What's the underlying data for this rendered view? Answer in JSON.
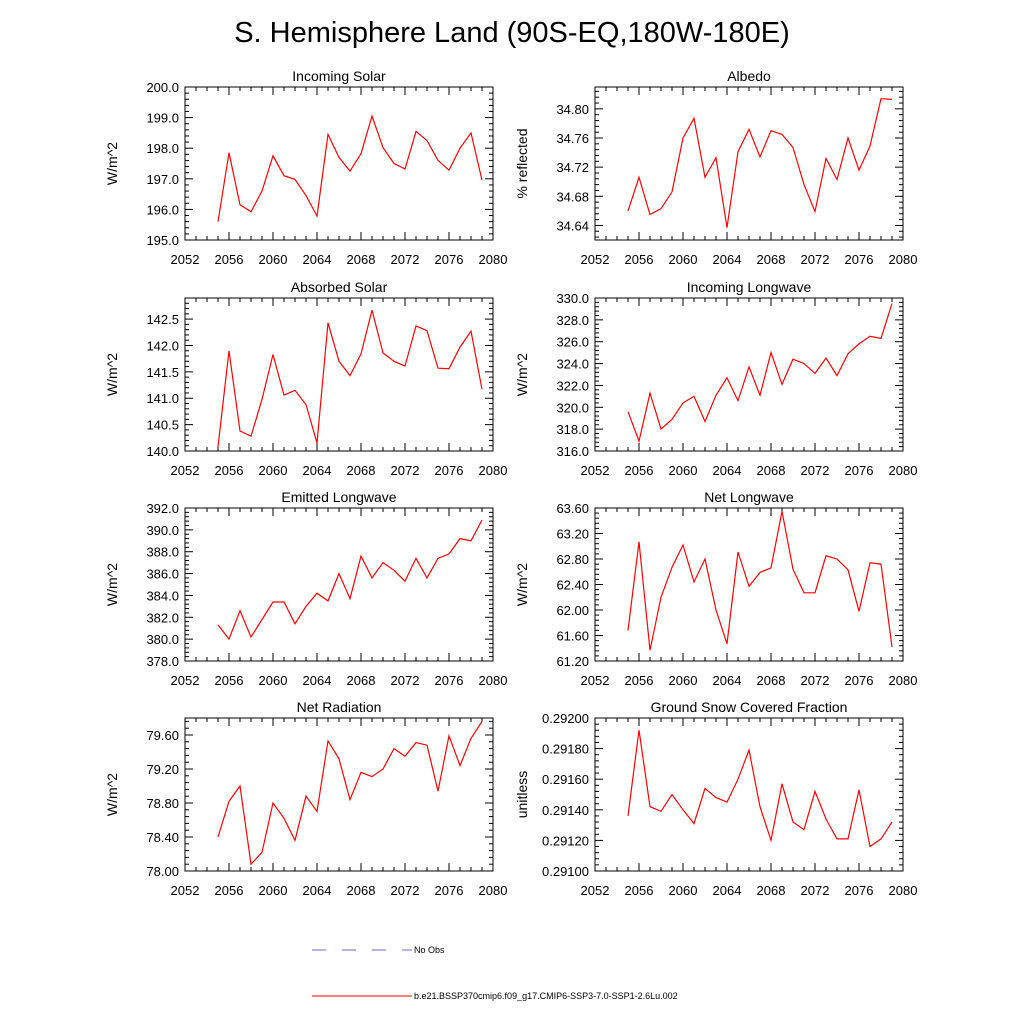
{
  "title": "S. Hemisphere Land (90S-EQ,180W-180E)",
  "legend": {
    "items": [
      {
        "label": "No Obs",
        "style": "dashed",
        "color": "#6b6bc8"
      },
      {
        "label": "b.e21.BSSP370cmip6.f09_g17.CMIP6-SSP3-7.0-SSP1-2.6Lu.002",
        "style": "solid",
        "color": "#ff0000"
      }
    ]
  },
  "chart_data": [
    {
      "type": "line",
      "title": "Incoming Solar",
      "ylabel": "W/m^2",
      "xlim": [
        2052,
        2080
      ],
      "ylim": [
        195.0,
        200.0
      ],
      "xticks": [
        "2052",
        "2056",
        "2060",
        "2064",
        "2068",
        "2072",
        "2076",
        "2080"
      ],
      "yticks": [
        "195.0",
        "196.0",
        "197.0",
        "198.0",
        "199.0",
        "200.0"
      ],
      "yticks_values": [
        195.0,
        196.0,
        197.0,
        198.0,
        199.0,
        200.0
      ],
      "series": [
        {
          "color": "#ff0000",
          "x": [
            2055,
            2056,
            2057,
            2058,
            2059,
            2060,
            2061,
            2062,
            2063,
            2064,
            2065,
            2066,
            2067,
            2068,
            2069,
            2070,
            2071,
            2072,
            2073,
            2074,
            2075,
            2076,
            2077,
            2078,
            2079
          ],
          "y": [
            195.6,
            197.85,
            196.15,
            195.92,
            196.6,
            197.75,
            197.1,
            196.98,
            196.45,
            195.78,
            198.45,
            197.7,
            197.25,
            197.82,
            199.05,
            198.02,
            197.5,
            197.32,
            198.55,
            198.25,
            197.6,
            197.28,
            198.0,
            198.5,
            196.95
          ]
        }
      ]
    },
    {
      "type": "line",
      "title": "Albedo",
      "ylabel": "% reflected",
      "xlim": [
        2052,
        2080
      ],
      "ylim": [
        34.62,
        34.83
      ],
      "xticks": [
        "2052",
        "2056",
        "2060",
        "2064",
        "2068",
        "2072",
        "2076",
        "2080"
      ],
      "yticks": [
        "34.64",
        "34.68",
        "34.72",
        "34.76",
        "34.80"
      ],
      "yticks_values": [
        34.64,
        34.68,
        34.72,
        34.76,
        34.8
      ],
      "series": [
        {
          "color": "#ff0000",
          "x": [
            2055,
            2056,
            2057,
            2058,
            2059,
            2060,
            2061,
            2062,
            2063,
            2064,
            2065,
            2066,
            2067,
            2068,
            2069,
            2070,
            2071,
            2072,
            2073,
            2074,
            2075,
            2076,
            2077,
            2078,
            2079
          ],
          "y": [
            34.66,
            34.706,
            34.655,
            34.663,
            34.686,
            34.76,
            34.787,
            34.706,
            34.733,
            34.637,
            34.741,
            34.772,
            34.734,
            34.77,
            34.765,
            34.747,
            34.696,
            34.659,
            34.732,
            34.703,
            34.76,
            34.716,
            34.749,
            34.814,
            34.813
          ]
        }
      ]
    },
    {
      "type": "line",
      "title": "Absorbed Solar",
      "ylabel": "W/m^2",
      "xlim": [
        2052,
        2080
      ],
      "ylim": [
        140.0,
        142.9
      ],
      "xticks": [
        "2052",
        "2056",
        "2060",
        "2064",
        "2068",
        "2072",
        "2076",
        "2080"
      ],
      "yticks": [
        "140.0",
        "140.5",
        "141.0",
        "141.5",
        "142.0",
        "142.5"
      ],
      "yticks_values": [
        140.0,
        140.5,
        141.0,
        141.5,
        142.0,
        142.5
      ],
      "series": [
        {
          "color": "#ff0000",
          "x": [
            2055,
            2056,
            2057,
            2058,
            2059,
            2060,
            2061,
            2062,
            2063,
            2064,
            2065,
            2066,
            2067,
            2068,
            2069,
            2070,
            2071,
            2072,
            2073,
            2074,
            2075,
            2076,
            2077,
            2078,
            2079
          ],
          "y": [
            140.08,
            141.9,
            140.38,
            140.28,
            140.98,
            141.83,
            141.06,
            141.15,
            140.88,
            140.15,
            142.43,
            141.7,
            141.43,
            141.84,
            142.67,
            141.86,
            141.7,
            141.61,
            142.37,
            142.28,
            141.57,
            141.56,
            141.97,
            142.27,
            141.17
          ]
        }
      ]
    },
    {
      "type": "line",
      "title": "Incoming Longwave",
      "ylabel": "W/m^2",
      "xlim": [
        2052,
        2080
      ],
      "ylim": [
        316.0,
        330.0
      ],
      "xticks": [
        "2052",
        "2056",
        "2060",
        "2064",
        "2068",
        "2072",
        "2076",
        "2080"
      ],
      "yticks": [
        "316.0",
        "318.0",
        "320.0",
        "322.0",
        "324.0",
        "326.0",
        "328.0",
        "330.0"
      ],
      "yticks_values": [
        316.0,
        318.0,
        320.0,
        322.0,
        324.0,
        326.0,
        328.0,
        330.0
      ],
      "series": [
        {
          "color": "#ff0000",
          "x": [
            2055,
            2056,
            2057,
            2058,
            2059,
            2060,
            2061,
            2062,
            2063,
            2064,
            2065,
            2066,
            2067,
            2068,
            2069,
            2070,
            2071,
            2072,
            2073,
            2074,
            2075,
            2076,
            2077,
            2078,
            2079
          ],
          "y": [
            319.6,
            316.9,
            321.3,
            318.0,
            318.9,
            320.4,
            321.0,
            318.7,
            321.1,
            322.7,
            320.6,
            323.7,
            321.1,
            325.0,
            322.1,
            324.4,
            324.0,
            323.1,
            324.5,
            322.9,
            324.9,
            325.8,
            326.5,
            326.3,
            329.5
          ]
        }
      ]
    },
    {
      "type": "line",
      "title": "Emitted Longwave",
      "ylabel": "W/m^2",
      "xlim": [
        2052,
        2080
      ],
      "ylim": [
        378.0,
        392.0
      ],
      "xticks": [
        "2052",
        "2056",
        "2060",
        "2064",
        "2068",
        "2072",
        "2076",
        "2080"
      ],
      "yticks": [
        "378.0",
        "380.0",
        "382.0",
        "384.0",
        "386.0",
        "388.0",
        "390.0",
        "392.0"
      ],
      "yticks_values": [
        378.0,
        380.0,
        382.0,
        384.0,
        386.0,
        388.0,
        390.0,
        392.0
      ],
      "series": [
        {
          "color": "#ff0000",
          "x": [
            2055,
            2056,
            2057,
            2058,
            2059,
            2060,
            2061,
            2062,
            2063,
            2064,
            2065,
            2066,
            2067,
            2068,
            2069,
            2070,
            2071,
            2072,
            2073,
            2074,
            2075,
            2076,
            2077,
            2078,
            2079
          ],
          "y": [
            381.3,
            380.0,
            382.6,
            380.2,
            381.8,
            383.4,
            383.4,
            381.4,
            383.0,
            384.2,
            383.5,
            386.0,
            383.7,
            387.6,
            385.6,
            387.0,
            386.3,
            385.3,
            387.4,
            385.6,
            387.4,
            387.8,
            389.2,
            389.0,
            390.9
          ]
        }
      ]
    },
    {
      "type": "line",
      "title": "Net Longwave",
      "ylabel": "W/m^2",
      "xlim": [
        2052,
        2080
      ],
      "ylim": [
        61.2,
        63.6
      ],
      "xticks": [
        "2052",
        "2056",
        "2060",
        "2064",
        "2068",
        "2072",
        "2076",
        "2080"
      ],
      "yticks": [
        "61.20",
        "61.60",
        "62.00",
        "62.40",
        "62.80",
        "63.20",
        "63.60"
      ],
      "yticks_values": [
        61.2,
        61.6,
        62.0,
        62.4,
        62.8,
        63.2,
        63.6
      ],
      "series": [
        {
          "color": "#ff0000",
          "x": [
            2055,
            2056,
            2057,
            2058,
            2059,
            2060,
            2061,
            2062,
            2063,
            2064,
            2065,
            2066,
            2067,
            2068,
            2069,
            2070,
            2071,
            2072,
            2073,
            2074,
            2075,
            2076,
            2077,
            2078,
            2079
          ],
          "y": [
            61.68,
            63.07,
            61.37,
            62.2,
            62.67,
            63.02,
            62.44,
            62.8,
            62.0,
            61.47,
            62.91,
            62.37,
            62.59,
            62.66,
            63.55,
            62.64,
            62.27,
            62.27,
            62.85,
            62.8,
            62.63,
            61.98,
            62.74,
            62.72,
            61.42
          ]
        }
      ]
    },
    {
      "type": "line",
      "title": "Net Radiation",
      "ylabel": "W/m^2",
      "xlim": [
        2052,
        2080
      ],
      "ylim": [
        78.0,
        79.8
      ],
      "xticks": [
        "2052",
        "2056",
        "2060",
        "2064",
        "2068",
        "2072",
        "2076",
        "2080"
      ],
      "yticks": [
        "78.00",
        "78.40",
        "78.80",
        "79.20",
        "79.60"
      ],
      "yticks_values": [
        78.0,
        78.4,
        78.8,
        79.2,
        79.6
      ],
      "series": [
        {
          "color": "#ff0000",
          "x": [
            2055,
            2056,
            2057,
            2058,
            2059,
            2060,
            2061,
            2062,
            2063,
            2064,
            2065,
            2066,
            2067,
            2068,
            2069,
            2070,
            2071,
            2072,
            2073,
            2074,
            2075,
            2076,
            2077,
            2078,
            2079
          ],
          "y": [
            78.4,
            78.82,
            79.0,
            78.08,
            78.22,
            78.8,
            78.62,
            78.36,
            78.88,
            78.7,
            79.53,
            79.32,
            78.84,
            79.16,
            79.11,
            79.2,
            79.44,
            79.35,
            79.51,
            79.48,
            78.94,
            79.59,
            79.24,
            79.56,
            79.76
          ]
        }
      ]
    },
    {
      "type": "line",
      "title": "Ground Snow Covered Fraction",
      "ylabel": "unitless",
      "xlim": [
        2052,
        2080
      ],
      "ylim": [
        0.291,
        0.292
      ],
      "xticks": [
        "2052",
        "2056",
        "2060",
        "2064",
        "2068",
        "2072",
        "2076",
        "2080"
      ],
      "yticks": [
        "0.29100",
        "0.29120",
        "0.29140",
        "0.29160",
        "0.29180",
        "0.29200"
      ],
      "yticks_values": [
        0.291,
        0.2912,
        0.2914,
        0.2916,
        0.2918,
        0.292
      ],
      "series": [
        {
          "color": "#ff0000",
          "x": [
            2055,
            2056,
            2057,
            2058,
            2059,
            2060,
            2061,
            2062,
            2063,
            2064,
            2065,
            2066,
            2067,
            2068,
            2069,
            2070,
            2071,
            2072,
            2073,
            2074,
            2075,
            2076,
            2077,
            2078,
            2079
          ],
          "y": [
            0.29136,
            0.29192,
            0.29142,
            0.29139,
            0.2915,
            0.2914,
            0.29131,
            0.29154,
            0.29148,
            0.29145,
            0.2916,
            0.29179,
            0.29142,
            0.2912,
            0.29157,
            0.29132,
            0.29127,
            0.29152,
            0.29134,
            0.29121,
            0.29121,
            0.29153,
            0.29116,
            0.29121,
            0.29132
          ]
        }
      ]
    }
  ]
}
